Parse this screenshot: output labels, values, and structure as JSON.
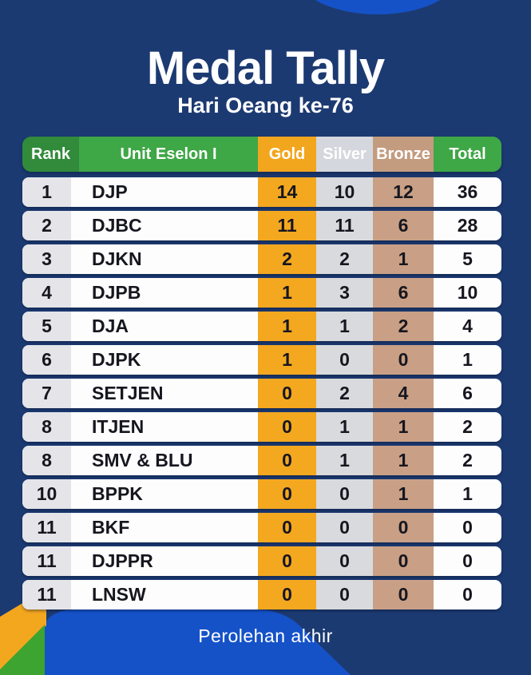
{
  "title": "Medal Tally",
  "subtitle": "Hari Oeang ke-76",
  "footer": "Perolehan akhir",
  "colors": {
    "background_navy": "#1c3a72",
    "bright_blue": "#1552c8",
    "gold": "#f3a71e",
    "silver": "#d5d7de",
    "bronze": "#c39c80",
    "green": "#3ea746",
    "green_dark": "#318b3b",
    "wedge_green": "#3da431",
    "row_white": "#fdfdfd",
    "rank_gray": "#e4e4e9"
  },
  "chart_data": {
    "type": "table",
    "title": "Medal Tally",
    "subtitle": "Hari Oeang ke-76",
    "footer": "Perolehan akhir",
    "columns": [
      "Rank",
      "Unit Eselon I",
      "Gold",
      "Silver",
      "Bronze",
      "Total"
    ],
    "rows": [
      [
        "1",
        "DJP",
        14,
        10,
        12,
        36
      ],
      [
        "2",
        "DJBC",
        11,
        11,
        6,
        28
      ],
      [
        "3",
        "DJKN",
        2,
        2,
        1,
        5
      ],
      [
        "4",
        "DJPB",
        1,
        3,
        6,
        10
      ],
      [
        "5",
        "DJA",
        1,
        1,
        2,
        4
      ],
      [
        "6",
        "DJPK",
        1,
        0,
        0,
        1
      ],
      [
        "7",
        "SETJEN",
        0,
        2,
        4,
        6
      ],
      [
        "8",
        "ITJEN",
        0,
        1,
        1,
        2
      ],
      [
        "8",
        "SMV & BLU",
        0,
        1,
        1,
        2
      ],
      [
        "10",
        "BPPK",
        0,
        0,
        1,
        1
      ],
      [
        "11",
        "BKF",
        0,
        0,
        0,
        0
      ],
      [
        "11",
        "DJPPR",
        0,
        0,
        0,
        0
      ],
      [
        "11",
        "LNSW",
        0,
        0,
        0,
        0
      ]
    ]
  }
}
